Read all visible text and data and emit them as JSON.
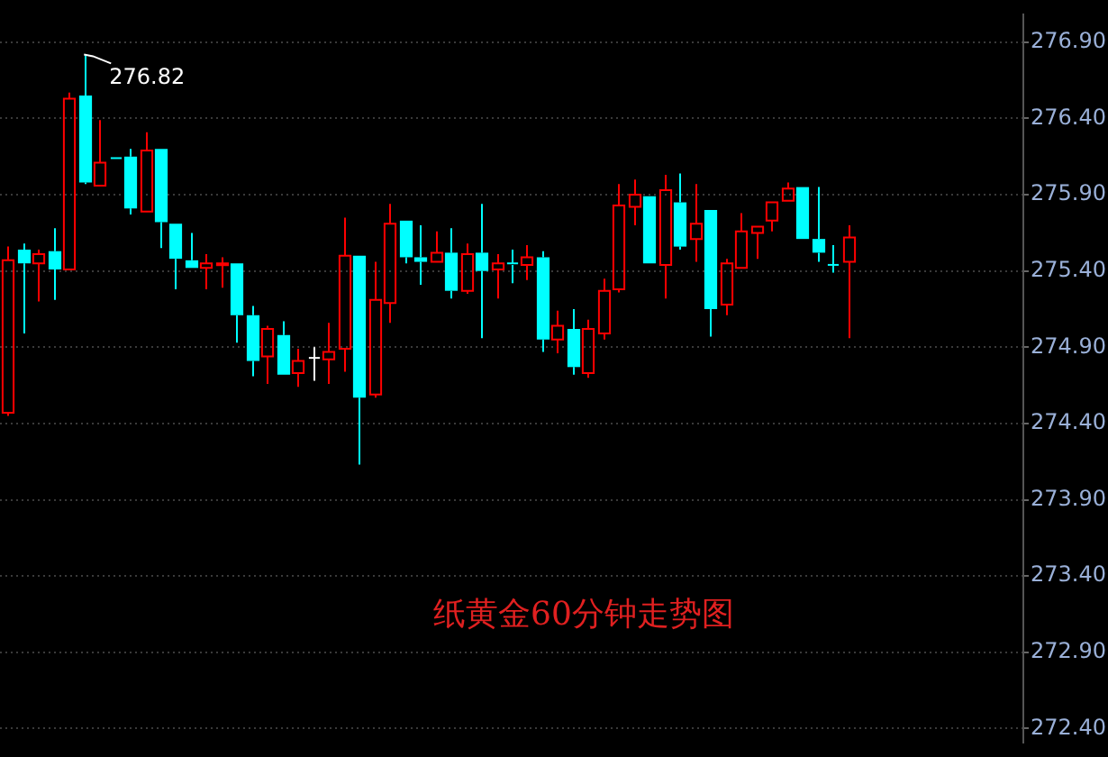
{
  "chart_data": {
    "type": "candlestick",
    "title": "纸黄金60分钟走势图",
    "categories": [
      null,
      null,
      null,
      null,
      null,
      null,
      null,
      null,
      null,
      null,
      null,
      null,
      null,
      null,
      null,
      null,
      null,
      null,
      null,
      null,
      null,
      null,
      null,
      null,
      null,
      null,
      null,
      null,
      null,
      null,
      null,
      null,
      null,
      null,
      null,
      null,
      null,
      null,
      null,
      null,
      null,
      null,
      null,
      null,
      null,
      null,
      null,
      null,
      null,
      null,
      null,
      null,
      null,
      null,
      null,
      null,
      null,
      null,
      null,
      null,
      null,
      null,
      null,
      null,
      null,
      null,
      null
    ],
    "ohlc": [
      [
        274.47,
        275.56,
        274.45,
        275.47
      ],
      [
        275.54,
        275.58,
        274.99,
        275.45
      ],
      [
        275.45,
        275.54,
        275.2,
        275.51
      ],
      [
        275.53,
        275.68,
        275.21,
        275.41
      ],
      [
        275.41,
        276.57,
        275.41,
        276.53
      ],
      [
        276.55,
        276.82,
        275.97,
        275.98
      ],
      [
        275.96,
        276.39,
        275.96,
        276.11
      ],
      [
        276.14,
        276.14,
        276.13,
        276.13
      ],
      [
        276.15,
        276.2,
        275.77,
        275.81
      ],
      [
        275.79,
        276.31,
        275.79,
        276.19
      ],
      [
        276.2,
        276.2,
        275.55,
        275.72
      ],
      [
        275.71,
        275.71,
        275.28,
        275.48
      ],
      [
        275.47,
        275.65,
        275.42,
        275.42
      ],
      [
        275.42,
        275.51,
        275.28,
        275.45
      ],
      [
        275.44,
        275.49,
        275.29,
        275.45
      ],
      [
        275.45,
        275.45,
        274.93,
        275.11
      ],
      [
        275.11,
        275.17,
        274.71,
        274.81
      ],
      [
        274.84,
        275.04,
        274.66,
        275.02
      ],
      [
        274.98,
        275.07,
        274.72,
        274.72
      ],
      [
        274.73,
        274.89,
        274.64,
        274.81
      ],
      [
        274.83,
        274.9,
        274.68,
        274.83
      ],
      [
        274.82,
        275.06,
        274.66,
        274.87
      ],
      [
        274.89,
        275.75,
        274.74,
        275.5
      ],
      [
        275.5,
        275.5,
        274.13,
        274.57
      ],
      [
        274.59,
        275.46,
        274.57,
        275.21
      ],
      [
        275.19,
        275.84,
        275.06,
        275.71
      ],
      [
        275.73,
        275.73,
        275.45,
        275.49
      ],
      [
        275.49,
        275.7,
        275.31,
        275.46
      ],
      [
        275.46,
        275.66,
        275.46,
        275.52
      ],
      [
        275.52,
        275.68,
        275.22,
        275.27
      ],
      [
        275.27,
        275.58,
        275.25,
        275.51
      ],
      [
        275.52,
        275.84,
        274.96,
        275.4
      ],
      [
        275.41,
        275.51,
        275.22,
        275.45
      ],
      [
        275.45,
        275.54,
        275.32,
        275.44
      ],
      [
        275.44,
        275.57,
        275.34,
        275.49
      ],
      [
        275.49,
        275.53,
        274.87,
        274.95
      ],
      [
        274.95,
        275.14,
        274.86,
        275.04
      ],
      [
        275.02,
        275.15,
        274.72,
        274.77
      ],
      [
        274.73,
        275.08,
        274.7,
        275.02
      ],
      [
        274.99,
        275.35,
        274.95,
        275.27
      ],
      [
        275.28,
        275.97,
        275.26,
        275.83
      ],
      [
        275.82,
        276.0,
        275.7,
        275.9
      ],
      [
        275.89,
        275.89,
        275.45,
        275.45
      ],
      [
        275.44,
        276.03,
        275.22,
        275.93
      ],
      [
        275.85,
        276.04,
        275.54,
        275.56
      ],
      [
        275.61,
        275.97,
        275.46,
        275.71
      ],
      [
        275.8,
        275.8,
        274.97,
        275.15
      ],
      [
        275.18,
        275.48,
        275.11,
        275.45
      ],
      [
        275.42,
        275.78,
        275.42,
        275.66
      ],
      [
        275.65,
        275.69,
        275.48,
        275.69
      ],
      [
        275.73,
        275.85,
        275.66,
        275.85
      ],
      [
        275.86,
        275.98,
        275.86,
        275.94
      ],
      [
        275.95,
        275.95,
        275.61,
        275.61
      ],
      [
        275.61,
        275.95,
        275.46,
        275.52
      ],
      [
        275.44,
        275.57,
        275.39,
        275.44
      ],
      [
        275.46,
        275.7,
        274.96,
        275.62
      ],
      null,
      null,
      null,
      null,
      null,
      null,
      null,
      null,
      null,
      null,
      null
    ],
    "colors": [
      "#ff0000",
      "#00ffff",
      "#ff0000",
      "#00ffff",
      "#ff0000",
      "#00ffff",
      "#ff0000",
      "#00ffff",
      "#00ffff",
      "#ff0000",
      "#00ffff",
      "#00ffff",
      "#00ffff",
      "#ff0000",
      "#ff0000",
      "#00ffff",
      "#00ffff",
      "#ff0000",
      "#00ffff",
      "#ff0000",
      "#ffffff",
      "#ff0000",
      "#ff0000",
      "#00ffff",
      "#ff0000",
      "#ff0000",
      "#00ffff",
      "#00ffff",
      "#ff0000",
      "#00ffff",
      "#ff0000",
      "#00ffff",
      "#ff0000",
      "#00ffff",
      "#ff0000",
      "#00ffff",
      "#ff0000",
      "#00ffff",
      "#ff0000",
      "#ff0000",
      "#ff0000",
      "#ff0000",
      "#00ffff",
      "#ff0000",
      "#00ffff",
      "#ff0000",
      "#00ffff",
      "#ff0000",
      "#ff0000",
      "#ff0000",
      "#ff0000",
      "#ff0000",
      "#00ffff",
      "#00ffff",
      "#00ffff",
      "#ff0000",
      null,
      null,
      null,
      null,
      null,
      null,
      null,
      null,
      null,
      null,
      null
    ],
    "ylim": [
      272.31,
      277.08
    ],
    "yticks": [
      {
        "value": 272.4,
        "label": "272.40"
      },
      {
        "value": 272.9,
        "label": "272.90"
      },
      {
        "value": 273.4,
        "label": "273.40"
      },
      {
        "value": 273.9,
        "label": "273.90"
      },
      {
        "value": 274.4,
        "label": "274.40"
      },
      {
        "value": 274.9,
        "label": "274.90"
      },
      {
        "value": 275.4,
        "label": "275.40"
      },
      {
        "value": 275.9,
        "label": "275.90"
      },
      {
        "value": 276.4,
        "label": "276.40"
      },
      {
        "value": 276.9,
        "label": "276.90"
      }
    ],
    "tick_labels": "y",
    "grid": "y",
    "annotations": [
      "276.82"
    ]
  }
}
